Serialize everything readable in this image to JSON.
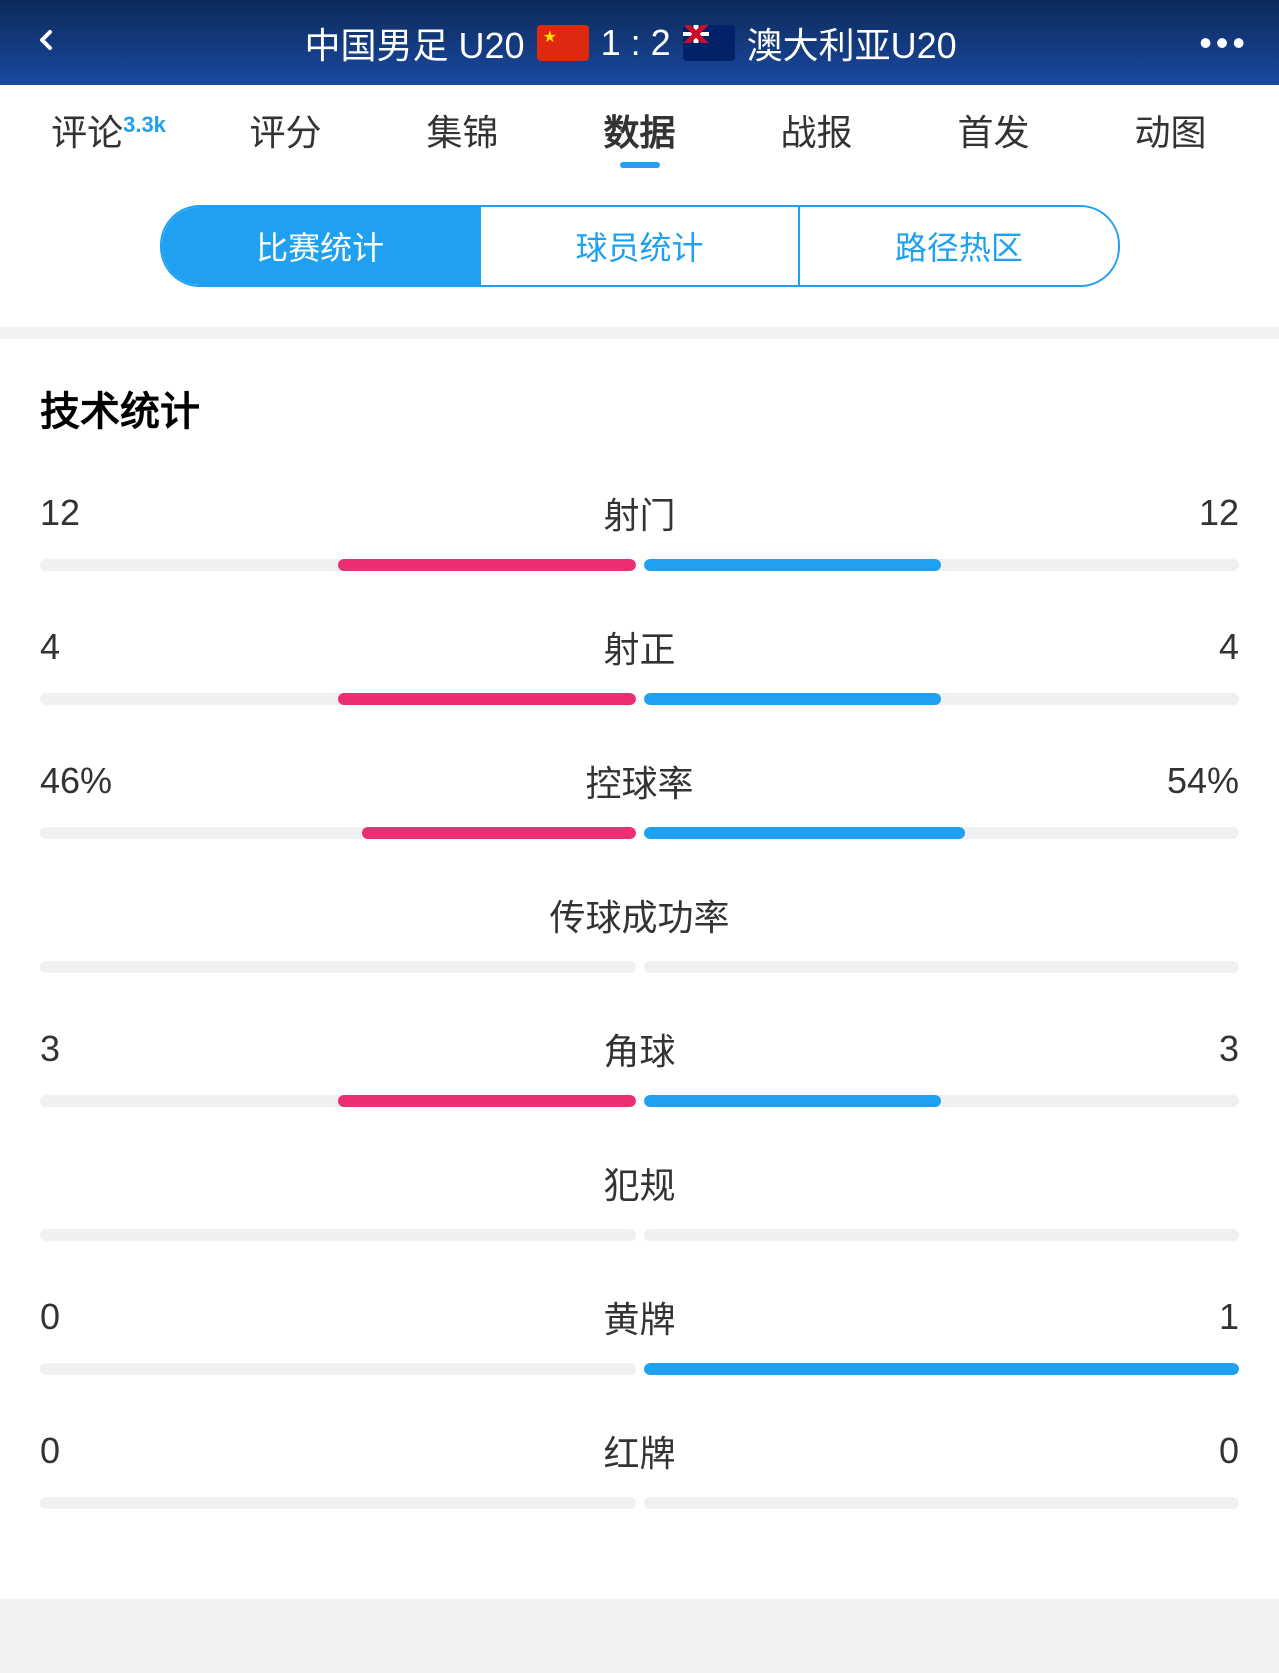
{
  "header": {
    "home_team": "中国男足 U20",
    "away_team": "澳大利亚U20",
    "score": "1 : 2"
  },
  "tabs": {
    "items": [
      {
        "label": "评论",
        "badge": "3.3k"
      },
      {
        "label": "评分"
      },
      {
        "label": "集锦"
      },
      {
        "label": "数据",
        "active": true
      },
      {
        "label": "战报"
      },
      {
        "label": "首发"
      },
      {
        "label": "动图"
      }
    ]
  },
  "subtabs": {
    "items": [
      {
        "label": "比赛统计",
        "active": true
      },
      {
        "label": "球员统计"
      },
      {
        "label": "路径热区"
      }
    ]
  },
  "section_title": "技术统计",
  "colors": {
    "home": "#ec2e74",
    "away": "#1fa0f0",
    "track": "#eef0f2"
  },
  "stats": [
    {
      "label": "射门",
      "home": "12",
      "away": "12",
      "home_pct": 50,
      "away_pct": 50
    },
    {
      "label": "射正",
      "home": "4",
      "away": "4",
      "home_pct": 50,
      "away_pct": 50
    },
    {
      "label": "控球率",
      "home": "46%",
      "away": "54%",
      "home_pct": 46,
      "away_pct": 54
    },
    {
      "label": "传球成功率",
      "home": "",
      "away": "",
      "home_pct": 0,
      "away_pct": 0
    },
    {
      "label": "角球",
      "home": "3",
      "away": "3",
      "home_pct": 50,
      "away_pct": 50
    },
    {
      "label": "犯规",
      "home": "",
      "away": "",
      "home_pct": 0,
      "away_pct": 0
    },
    {
      "label": "黄牌",
      "home": "0",
      "away": "1",
      "home_pct": 0,
      "away_pct": 100
    },
    {
      "label": "红牌",
      "home": "0",
      "away": "0",
      "home_pct": 0,
      "away_pct": 0
    }
  ]
}
